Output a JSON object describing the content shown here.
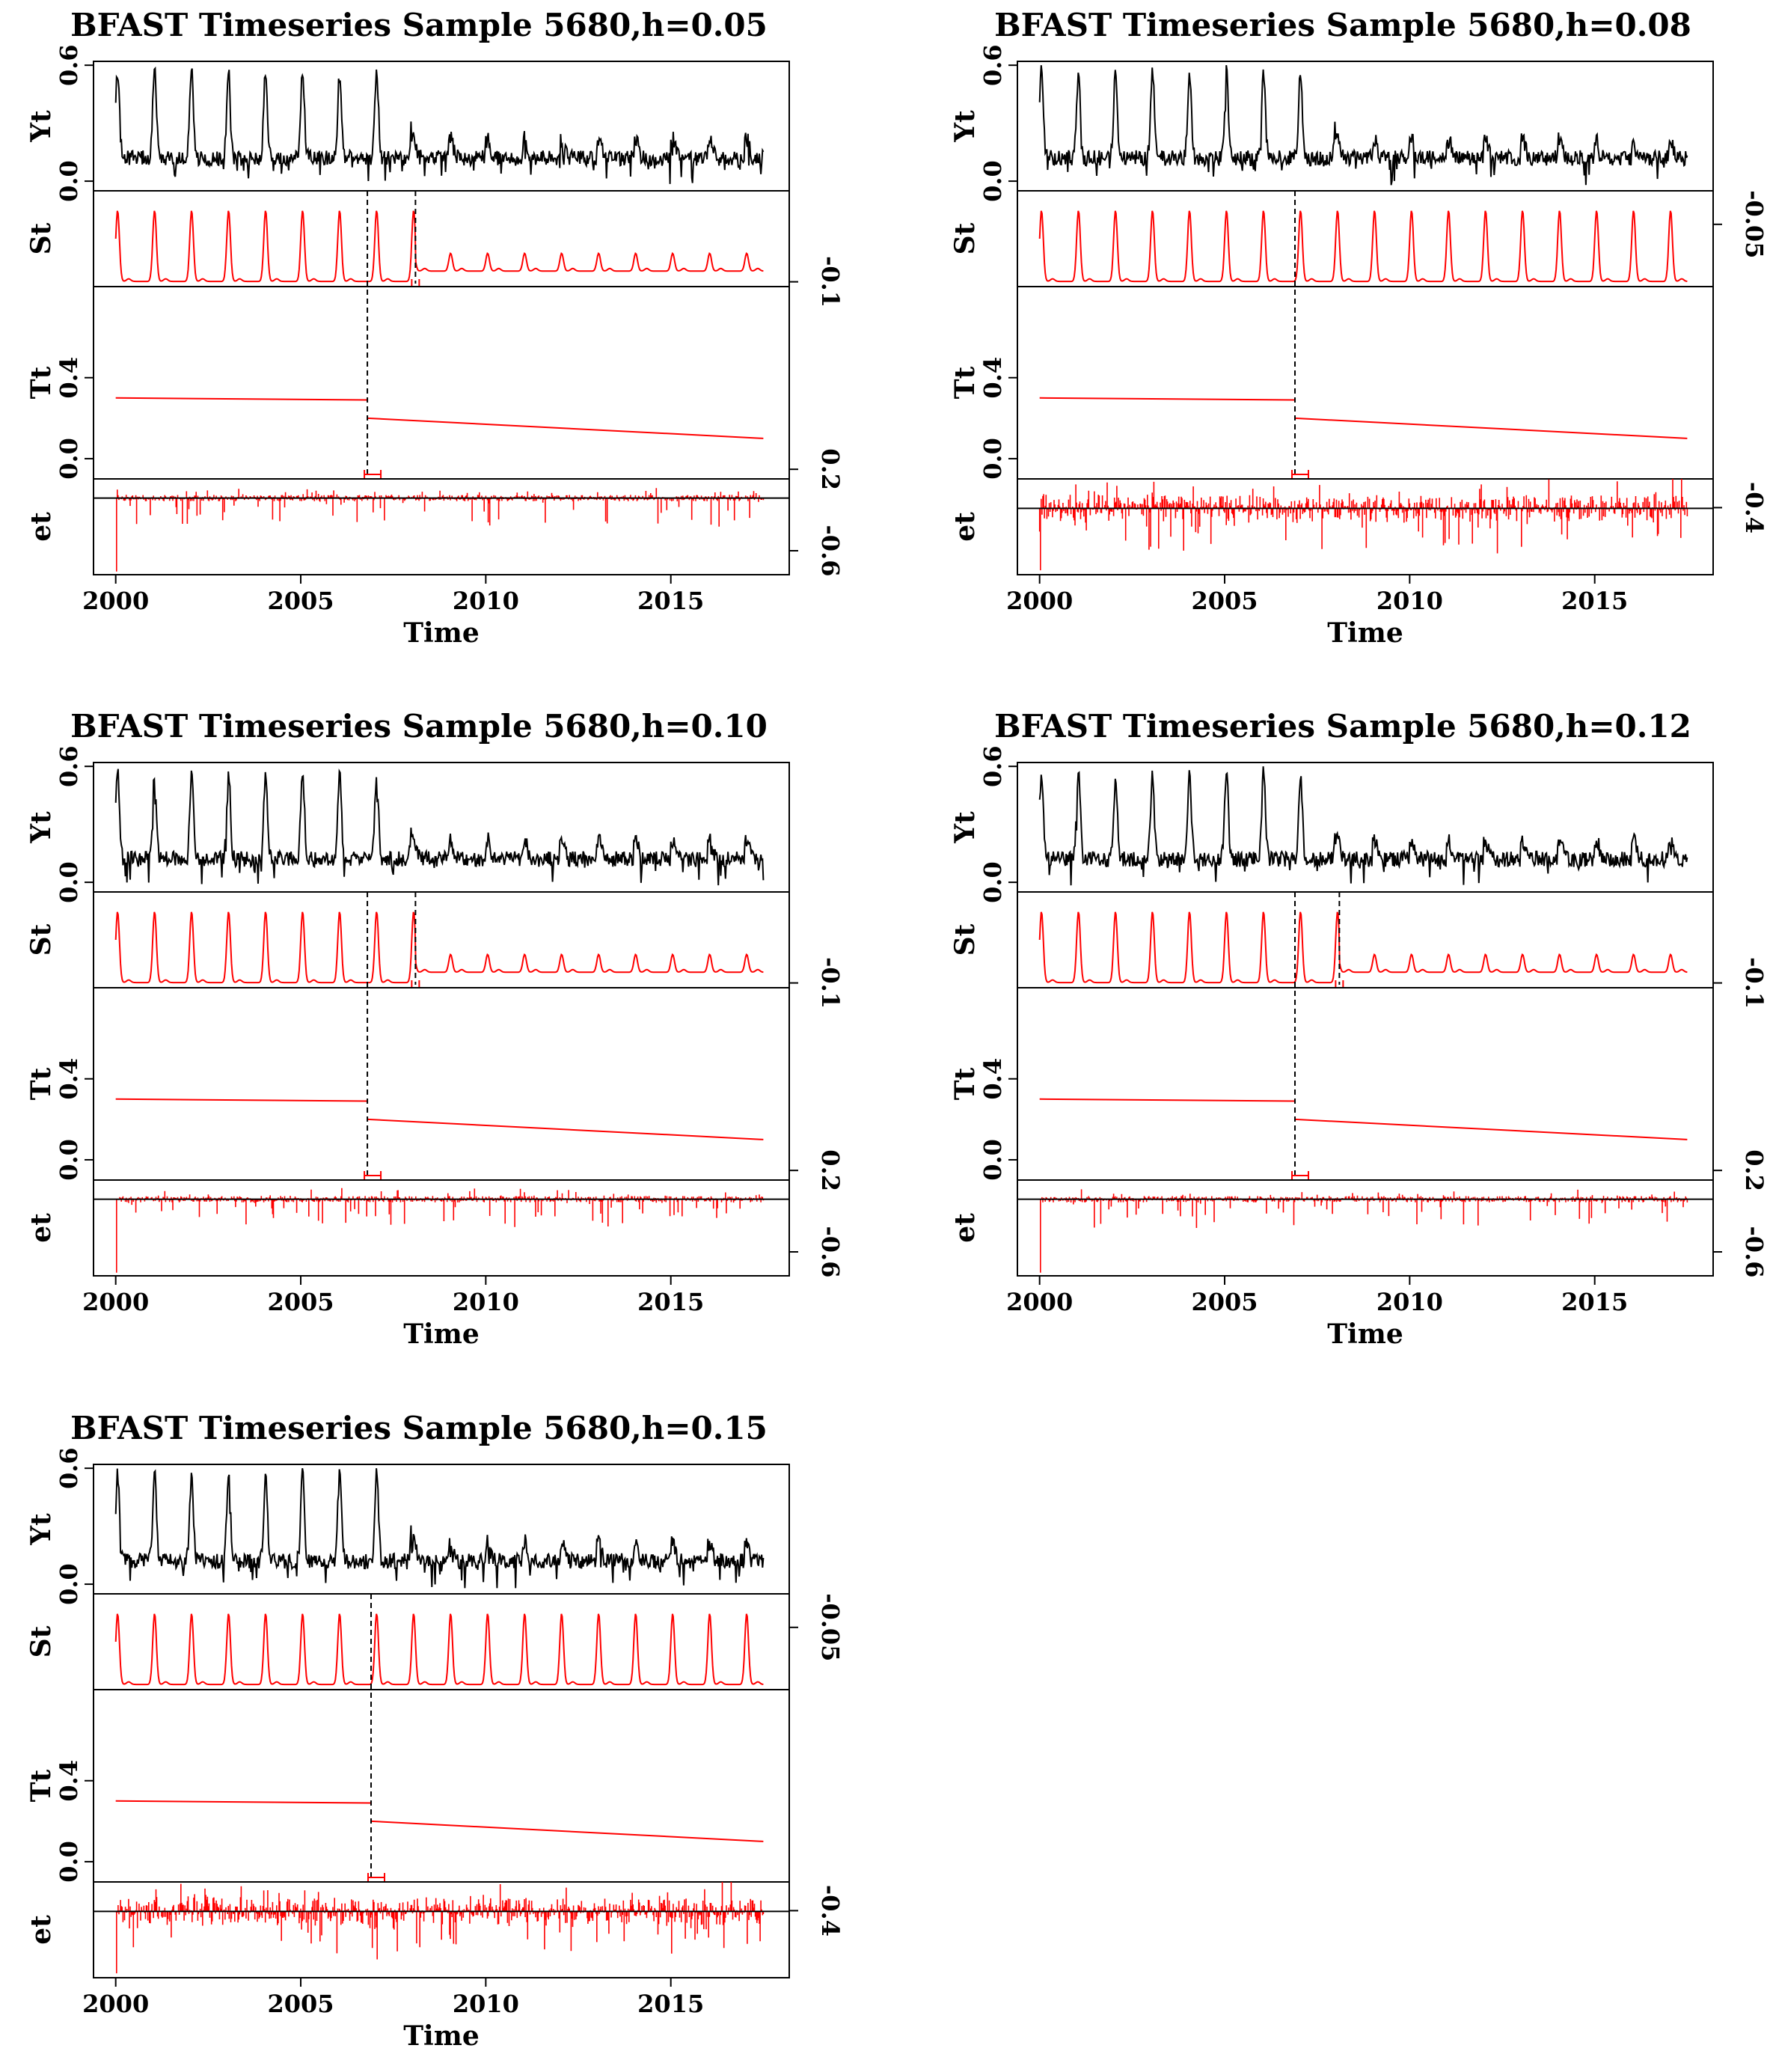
{
  "chart_data": [
    {
      "type": "line",
      "title": "BFAST Timeseries Sample 5680,h=0.05",
      "xlabel": "Time",
      "xlim": [
        1999.4,
        2018.2
      ],
      "x_ticks": [
        2000,
        2005,
        2010,
        2015
      ],
      "series_start": 2000.0,
      "series_end": 2017.5,
      "panels": {
        "Yt": {
          "label": "Yt",
          "ylim": [
            -0.05,
            0.62
          ],
          "left_ticks": [
            "0.0",
            "0.6"
          ],
          "left_tick_values": [
            0.0,
            0.6
          ]
        },
        "St": {
          "label": "St",
          "ylim": [
            -0.12,
            0.62
          ]
        },
        "Tt": {
          "label": "Tt",
          "ylim": [
            -0.1,
            0.85
          ],
          "left_ticks": [
            "0.0",
            "0.4"
          ],
          "left_tick_values": [
            0.0,
            0.4
          ],
          "segments": [
            {
              "x": [
                2000.0,
                2006.8
              ],
              "y": [
                0.3,
                0.29
              ]
            },
            {
              "x": [
                2006.8,
                2017.5
              ],
              "y": [
                0.2,
                0.1
              ]
            }
          ]
        },
        "et": {
          "label": "et",
          "ylim": [
            -0.72,
            0.18
          ]
        }
      },
      "right_ticks": [
        {
          "label": "-0.1",
          "panel": "St",
          "frac": 0.05
        },
        {
          "label": "0.2",
          "panel": "Tt",
          "frac": 0.05
        },
        {
          "label": "-0.6",
          "panel": "et",
          "frac": 0.25
        }
      ],
      "trend_breaks": [
        2006.8
      ],
      "season_breaks": [
        2008.1
      ],
      "season_amplitude_after_break": 0.25,
      "remainder_strength": 1.0
    },
    {
      "type": "line",
      "title": "BFAST Timeseries Sample 5680,h=0.08",
      "xlabel": "Time",
      "xlim": [
        1999.4,
        2018.2
      ],
      "x_ticks": [
        2000,
        2005,
        2010,
        2015
      ],
      "series_start": 2000.0,
      "series_end": 2017.5,
      "panels": {
        "Yt": {
          "label": "Yt",
          "ylim": [
            -0.05,
            0.62
          ],
          "left_ticks": [
            "0.0",
            "0.6"
          ],
          "left_tick_values": [
            0.0,
            0.6
          ]
        },
        "St": {
          "label": "St",
          "ylim": [
            -0.12,
            0.62
          ]
        },
        "Tt": {
          "label": "Tt",
          "ylim": [
            -0.1,
            0.85
          ],
          "left_ticks": [
            "0.0",
            "0.4"
          ],
          "left_tick_values": [
            0.0,
            0.4
          ],
          "segments": [
            {
              "x": [
                2000.0,
                2006.9
              ],
              "y": [
                0.3,
                0.29
              ]
            },
            {
              "x": [
                2006.9,
                2017.5
              ],
              "y": [
                0.2,
                0.1
              ]
            }
          ]
        },
        "et": {
          "label": "et",
          "ylim": [
            -0.45,
            0.2
          ]
        }
      },
      "right_ticks": [
        {
          "label": "-0.05",
          "panel": "St",
          "frac": 0.65
        },
        {
          "label": "-0.4",
          "panel": "et",
          "frac": 0.7
        }
      ],
      "trend_breaks": [
        2006.9
      ],
      "season_breaks": [],
      "season_amplitude_after_break": 1.0,
      "remainder_strength": 2.0
    },
    {
      "type": "line",
      "title": "BFAST Timeseries Sample 5680,h=0.10",
      "xlabel": "Time",
      "xlim": [
        1999.4,
        2018.2
      ],
      "x_ticks": [
        2000,
        2005,
        2010,
        2015
      ],
      "series_start": 2000.0,
      "series_end": 2017.5,
      "panels": {
        "Yt": {
          "label": "Yt",
          "ylim": [
            -0.05,
            0.62
          ],
          "left_ticks": [
            "0.0",
            "0.6"
          ],
          "left_tick_values": [
            0.0,
            0.6
          ]
        },
        "St": {
          "label": "St",
          "ylim": [
            -0.12,
            0.62
          ]
        },
        "Tt": {
          "label": "Tt",
          "ylim": [
            -0.1,
            0.85
          ],
          "left_ticks": [
            "0.0",
            "0.4"
          ],
          "left_tick_values": [
            0.0,
            0.4
          ],
          "segments": [
            {
              "x": [
                2000.0,
                2006.8
              ],
              "y": [
                0.3,
                0.29
              ]
            },
            {
              "x": [
                2006.8,
                2017.5
              ],
              "y": [
                0.2,
                0.1
              ]
            }
          ]
        },
        "et": {
          "label": "et",
          "ylim": [
            -0.72,
            0.18
          ]
        }
      },
      "right_ticks": [
        {
          "label": "-0.1",
          "panel": "St",
          "frac": 0.05
        },
        {
          "label": "0.2",
          "panel": "Tt",
          "frac": 0.05
        },
        {
          "label": "-0.6",
          "panel": "et",
          "frac": 0.25
        }
      ],
      "trend_breaks": [
        2006.8
      ],
      "season_breaks": [
        2008.1
      ],
      "season_amplitude_after_break": 0.25,
      "remainder_strength": 1.0
    },
    {
      "type": "line",
      "title": "BFAST Timeseries Sample 5680,h=0.12",
      "xlabel": "Time",
      "xlim": [
        1999.4,
        2018.2
      ],
      "x_ticks": [
        2000,
        2005,
        2010,
        2015
      ],
      "series_start": 2000.0,
      "series_end": 2017.5,
      "panels": {
        "Yt": {
          "label": "Yt",
          "ylim": [
            -0.05,
            0.62
          ],
          "left_ticks": [
            "0.0",
            "0.6"
          ],
          "left_tick_values": [
            0.0,
            0.6
          ]
        },
        "St": {
          "label": "St",
          "ylim": [
            -0.12,
            0.62
          ]
        },
        "Tt": {
          "label": "Tt",
          "ylim": [
            -0.1,
            0.85
          ],
          "left_ticks": [
            "0.0",
            "0.4"
          ],
          "left_tick_values": [
            0.0,
            0.4
          ],
          "segments": [
            {
              "x": [
                2000.0,
                2006.9
              ],
              "y": [
                0.3,
                0.29
              ]
            },
            {
              "x": [
                2006.9,
                2017.5
              ],
              "y": [
                0.2,
                0.1
              ]
            }
          ]
        },
        "et": {
          "label": "et",
          "ylim": [
            -0.72,
            0.18
          ]
        }
      },
      "right_ticks": [
        {
          "label": "-0.1",
          "panel": "St",
          "frac": 0.05
        },
        {
          "label": "0.2",
          "panel": "Tt",
          "frac": 0.05
        },
        {
          "label": "-0.6",
          "panel": "et",
          "frac": 0.25
        }
      ],
      "trend_breaks": [
        2006.9
      ],
      "season_breaks": [
        2008.1
      ],
      "season_amplitude_after_break": 0.25,
      "remainder_strength": 1.0
    },
    {
      "type": "line",
      "title": "BFAST Timeseries Sample 5680,h=0.15",
      "xlabel": "Time",
      "xlim": [
        1999.4,
        2018.2
      ],
      "x_ticks": [
        2000,
        2005,
        2010,
        2015
      ],
      "series_start": 2000.0,
      "series_end": 2017.5,
      "panels": {
        "Yt": {
          "label": "Yt",
          "ylim": [
            -0.05,
            0.62
          ],
          "left_ticks": [
            "0.0",
            "0.6"
          ],
          "left_tick_values": [
            0.0,
            0.6
          ]
        },
        "St": {
          "label": "St",
          "ylim": [
            -0.12,
            0.62
          ]
        },
        "Tt": {
          "label": "Tt",
          "ylim": [
            -0.1,
            0.85
          ],
          "left_ticks": [
            "0.0",
            "0.4"
          ],
          "left_tick_values": [
            0.0,
            0.4
          ],
          "segments": [
            {
              "x": [
                2000.0,
                2006.9
              ],
              "y": [
                0.3,
                0.29
              ]
            },
            {
              "x": [
                2006.9,
                2017.5
              ],
              "y": [
                0.2,
                0.1
              ]
            }
          ]
        },
        "et": {
          "label": "et",
          "ylim": [
            -0.45,
            0.2
          ]
        }
      },
      "right_ticks": [
        {
          "label": "-0.05",
          "panel": "St",
          "frac": 0.65
        },
        {
          "label": "-0.4",
          "panel": "et",
          "frac": 0.7
        }
      ],
      "trend_breaks": [
        2006.9
      ],
      "season_breaks": [],
      "season_amplitude_after_break": 1.0,
      "remainder_strength": 2.0
    }
  ],
  "colors": {
    "observed": "#000000",
    "component": "#ff0000",
    "axis": "#000000",
    "background": "#ffffff"
  }
}
